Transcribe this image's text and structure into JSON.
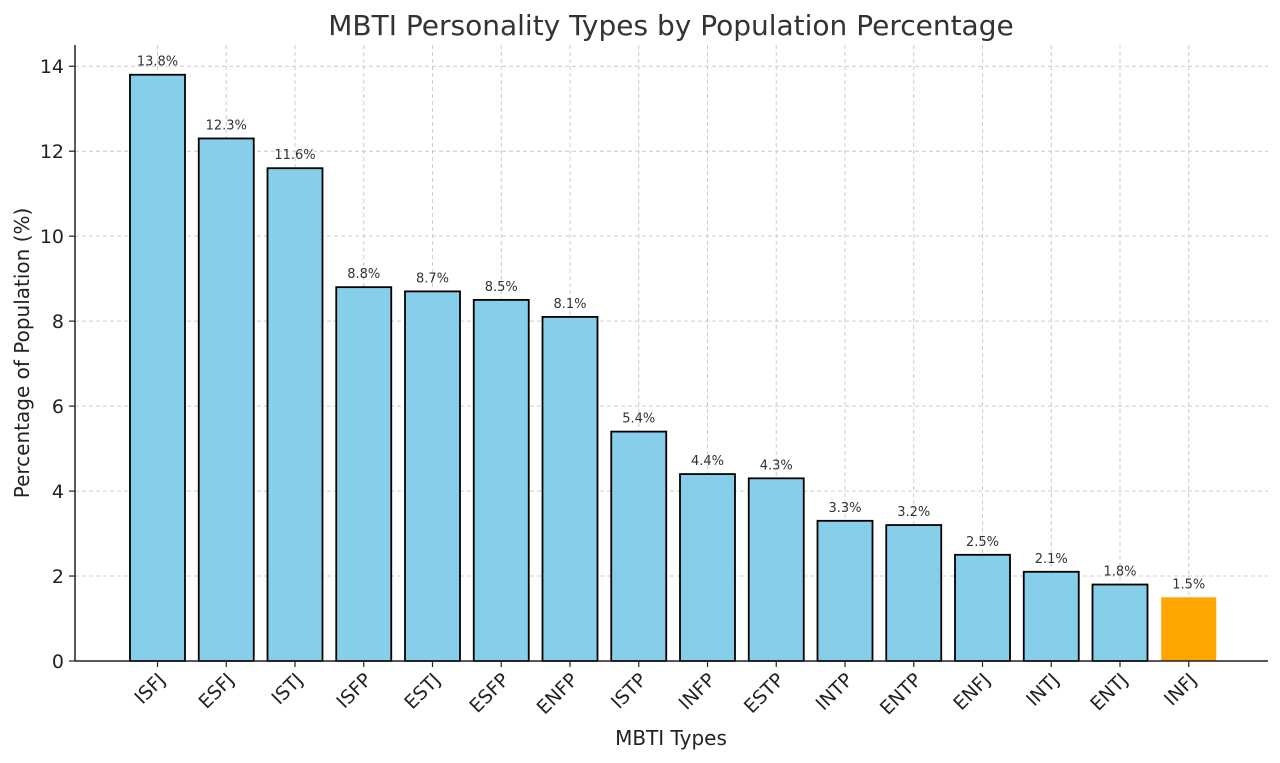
{
  "chart_data": {
    "type": "bar",
    "title": "MBTI Personality Types by Population Percentage",
    "xlabel": "MBTI Types",
    "ylabel": "Percentage of Population (%)",
    "categories": [
      "ISFJ",
      "ESFJ",
      "ISTJ",
      "ISFP",
      "ESTJ",
      "ESFP",
      "ENFP",
      "ISTP",
      "INFP",
      "ESTP",
      "INTP",
      "ENTP",
      "ENFJ",
      "INTJ",
      "ENTJ",
      "INFJ"
    ],
    "values": [
      13.8,
      12.3,
      11.6,
      8.8,
      8.7,
      8.5,
      8.1,
      5.4,
      4.4,
      4.3,
      3.3,
      3.2,
      2.5,
      2.1,
      1.8,
      1.5
    ],
    "data_labels": [
      "13.8%",
      "12.3%",
      "11.6%",
      "8.8%",
      "8.7%",
      "8.5%",
      "8.1%",
      "5.4%",
      "4.4%",
      "4.3%",
      "3.3%",
      "3.2%",
      "2.5%",
      "2.1%",
      "1.8%",
      "1.5%"
    ],
    "ylim": [
      0,
      14.5
    ],
    "yticks": [
      0,
      2,
      4,
      6,
      8,
      10,
      12,
      14
    ],
    "grid": true,
    "highlight_category": "INFJ",
    "colors": {
      "bar": "#87CEEB",
      "highlight": "#FFA500",
      "edge": "#000000"
    }
  }
}
